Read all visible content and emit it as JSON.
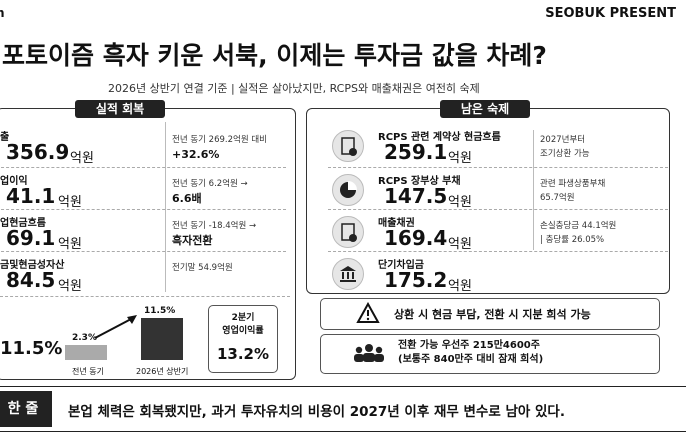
{
  "header": {
    "brand_fragment": "n",
    "brand": "SEOBUK PRESENT",
    "title": "포토이즘 흑자 키운 서북, 이제는 투자금 값을 차례?",
    "subtitle": "2026년 상반기 연결 기준  |  실적은 살아났지만, RCPS와 매출채권은 여전히 숙제"
  },
  "left_panel": {
    "title": "실적 회복",
    "rows": [
      {
        "label": "출",
        "value": "356.9",
        "unit": "억원",
        "note": [
          "전년 동기 269.2억원 대비",
          "+32.6%"
        ]
      },
      {
        "label": "업이익",
        "value": "41.1",
        "unit": "억원",
        "note": [
          "전년 동기 6.2억원 →",
          "6.6배"
        ]
      },
      {
        "label": "업현금흐름",
        "value": "69.1",
        "unit": "억원",
        "note": [
          "전년 동기 -18.4억원 →",
          "흑자전환"
        ]
      },
      {
        "label": "금및현금성자산",
        "value": "84.5",
        "unit": "억원",
        "note": [
          "전기말 54.9억원"
        ]
      }
    ],
    "margin": {
      "value": "11.5%",
      "bars": [
        {
          "label": "전년 동기",
          "value": "2.3%"
        },
        {
          "label": "2026년 상반기",
          "value": "11.5%"
        }
      ],
      "q2_label": [
        "2분기",
        "영업이익률"
      ],
      "q2_value": "13.2%"
    }
  },
  "right_panel": {
    "title": "남은 숙제",
    "rows": [
      {
        "label": "RCPS 관련 계약상 현금흐름",
        "value": "259.1",
        "unit": "억원",
        "note": [
          "2027년부터",
          "조기상환 가능"
        ]
      },
      {
        "label": "RCPS 장부상 부채",
        "value": "147.5",
        "unit": "억원",
        "note": [
          "관련 파생상품부채",
          "65.7억원"
        ]
      },
      {
        "label": "매출채권",
        "value": "169.4",
        "unit": "억원",
        "note": [
          "손실충당금 44.1억원",
          "| 충당률 26.05%"
        ]
      },
      {
        "label": "단기차입금",
        "value": "175.2",
        "unit": "억원",
        "note": []
      }
    ],
    "warning": "상환 시 현금 부담, 전환 시 지분 희석 가능",
    "dilution": [
      "전환 가능 우선주 215만4600주",
      "(보통주 840만주 대비 잠재 희석)"
    ]
  },
  "summary": {
    "label": "한 줄",
    "text": "본업 체력은 회복됐지만, 과거 투자유치의 비용이 2027년 이후 재무 변수로 남아 있다."
  }
}
